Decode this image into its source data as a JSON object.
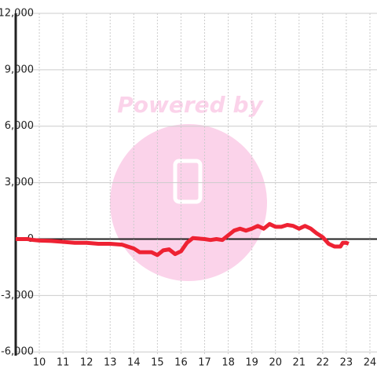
{
  "chart_data": {
    "type": "line",
    "watermark": "Powered by",
    "x": [
      9,
      9.5,
      9.75,
      10,
      10.5,
      11,
      11.5,
      12,
      12.5,
      13,
      13.5,
      14,
      14.25,
      14.5,
      14.75,
      15,
      15.25,
      15.5,
      15.75,
      16,
      16.25,
      16.5,
      17,
      17.25,
      17.5,
      17.75,
      18,
      18.25,
      18.5,
      18.75,
      19,
      19.25,
      19.5,
      19.75,
      20,
      20.25,
      20.5,
      20.75,
      21,
      21.25,
      21.5,
      21.75,
      22,
      22.25,
      22.5,
      22.75,
      22.85,
      23,
      23.1
    ],
    "series": [
      {
        "color": "#ee2233",
        "values": [
          0,
          0,
          -50,
          -80,
          -100,
          -150,
          -200,
          -200,
          -250,
          -250,
          -300,
          -500,
          -700,
          -700,
          -700,
          -850,
          -600,
          -550,
          -800,
          -650,
          -200,
          50,
          0,
          -50,
          0,
          -50,
          200,
          450,
          550,
          450,
          550,
          700,
          550,
          800,
          650,
          650,
          750,
          700,
          550,
          700,
          550,
          300,
          100,
          -250,
          -400,
          -400,
          -200,
          -200,
          -250
        ]
      }
    ],
    "xlim": [
      9,
      24.3
    ],
    "xticks": [
      10,
      11,
      12,
      13,
      14,
      15,
      16,
      17,
      18,
      19,
      20,
      21,
      22,
      23,
      24
    ],
    "ylim": [
      -6200,
      12000
    ],
    "yticks": [
      {
        "value": -6000,
        "label": "-6,000"
      },
      {
        "value": -3000,
        "label": "-3,000"
      },
      0,
      {
        "value": 3000,
        "label": "3,000"
      },
      {
        "value": 6000,
        "label": "6,000"
      },
      {
        "value": 9000,
        "label": "9,000"
      },
      {
        "value": 12000,
        "label": "12,000"
      }
    ],
    "grid": true
  }
}
